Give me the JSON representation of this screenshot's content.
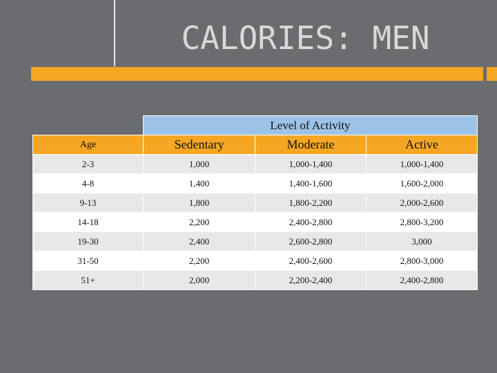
{
  "title": "CALORIES: MEN",
  "table": {
    "group_header": "Level of Activity",
    "headers": [
      "Age",
      "Sedentary",
      "Moderate",
      "Active"
    ],
    "rows": [
      [
        "2-3",
        "1,000",
        "1,000-1,400",
        "1,000-1,400"
      ],
      [
        "4-8",
        "1,400",
        "1,400-1,600",
        "1,600-2,000"
      ],
      [
        "9-13",
        "1,800",
        "1,800-2,200",
        "2,000-2,600"
      ],
      [
        "14-18",
        "2,200",
        "2,400-2,800",
        "2,800-3,200"
      ],
      [
        "19-30",
        "2,400",
        "2,600-2,800",
        "3,000"
      ],
      [
        "31-50",
        "2,200",
        "2,400-2,600",
        "2,800-3,000"
      ],
      [
        "51+",
        "2,000",
        "2,200-2,400",
        "2,400-2,800"
      ]
    ]
  }
}
